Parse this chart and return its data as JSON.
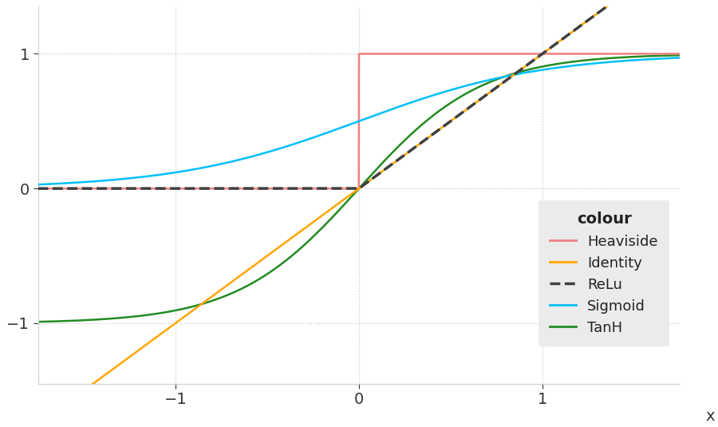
{
  "title": "",
  "xlabel": "x",
  "ylabel": "",
  "xlim": [
    -1.75,
    1.75
  ],
  "ylim": [
    -1.45,
    1.35
  ],
  "xticks": [
    -1,
    0,
    1
  ],
  "yticks": [
    -1,
    0,
    1
  ],
  "background_color": "#ffffff",
  "plot_bg_color": "#ffffff",
  "grid_color": "#c8c8c8",
  "sigmoid_scale": 2.0,
  "tanh_scale": 1.5,
  "functions": {
    "Heaviside": {
      "color": "#f08080",
      "lw": 1.8,
      "ls": "solid"
    },
    "Identity": {
      "color": "#FFA500",
      "lw": 1.8,
      "ls": "solid"
    },
    "ReLu": {
      "color": "#404040",
      "lw": 2.5,
      "ls": "dashed"
    },
    "Sigmoid": {
      "color": "#00BFFF",
      "lw": 1.8,
      "ls": "solid"
    },
    "TanH": {
      "color": "#228B22",
      "lw": 1.8,
      "ls": "solid"
    }
  },
  "legend_title": "colour",
  "legend_fontsize": 13,
  "tick_fontsize": 14,
  "axis_label_fontsize": 14,
  "legend_bg": "#ebebeb"
}
